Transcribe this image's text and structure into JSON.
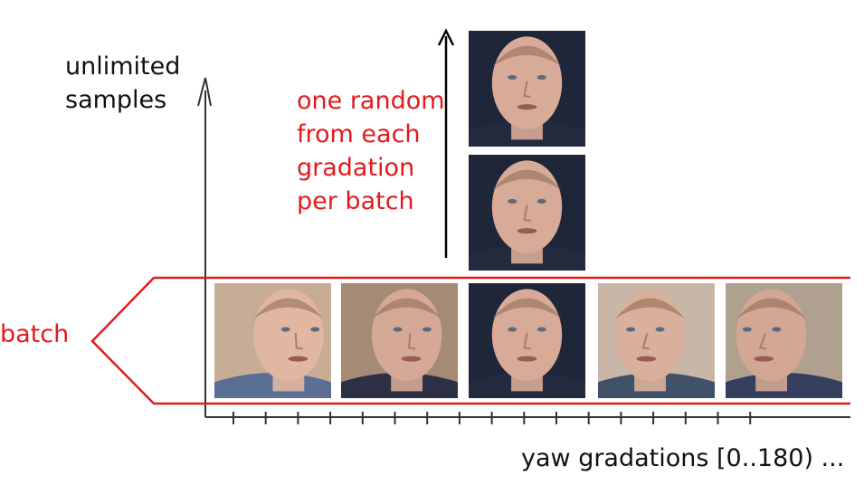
{
  "diagram": {
    "y_axis_label": "unlimited\nsamples",
    "annotation": "one random\nfrom each\ngradation\nper batch",
    "batch_label": "batch",
    "x_axis_label": "yaw gradations [0..180) ..."
  },
  "batch_faces": [
    {
      "name": "face-yaw-1",
      "bg": "#c7ad95",
      "skin": "#e2b7a1",
      "shirt": "#5b6f96",
      "turn": 0.75
    },
    {
      "name": "face-yaw-2",
      "bg": "#a48b76",
      "skin": "#d6a896",
      "shirt": "#2c3045",
      "turn": 0.35
    },
    {
      "name": "face-yaw-3",
      "bg": "#20263a",
      "skin": "#d8ab99",
      "shirt": "#242a3d",
      "turn": 0.0
    },
    {
      "name": "face-yaw-4",
      "bg": "#c8b7a9",
      "skin": "#d9b09c",
      "shirt": "#415168",
      "turn": -0.3
    },
    {
      "name": "face-yaw-5",
      "bg": "#b0a090",
      "skin": "#d2a794",
      "shirt": "#36405e",
      "turn": -0.6
    }
  ],
  "sample_faces": [
    {
      "name": "face-sample-top",
      "bg": "#20263a",
      "skin": "#d8ab99",
      "shirt": "#242a3d",
      "turn": 0.0
    },
    {
      "name": "face-sample-middle",
      "bg": "#20263a",
      "skin": "#d8ab99",
      "shirt": "#242a3d",
      "turn": 0.0
    }
  ],
  "colors": {
    "accent": "#e31a1c",
    "axis": "#333333",
    "arrow": "#000000"
  }
}
